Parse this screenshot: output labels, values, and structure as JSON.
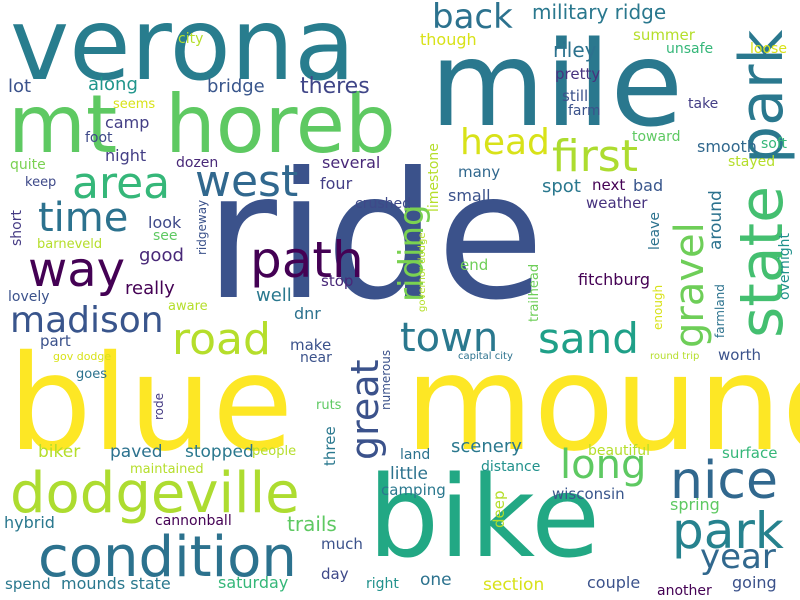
{
  "words": [
    {
      "text": "ride",
      "color": "#3b528b"
    },
    {
      "text": "blue",
      "color": "#fde725"
    },
    {
      "text": "mound",
      "color": "#fde725"
    },
    {
      "text": "verona",
      "color": "#287d8e"
    },
    {
      "text": "mile",
      "color": "#2a788e"
    },
    {
      "text": "bike",
      "color": "#22a884"
    },
    {
      "text": "mt",
      "color": "#5ec962"
    },
    {
      "text": "horeb",
      "color": "#5ec962"
    },
    {
      "text": "dodgeville",
      "color": "#addc30"
    },
    {
      "text": "condition",
      "color": "#2c728e"
    },
    {
      "text": "state",
      "color": "#44bf70"
    },
    {
      "text": "park",
      "color": "#2a788e"
    },
    {
      "text": "park",
      "color": "#26828e"
    },
    {
      "text": "nice",
      "color": "#31688e"
    },
    {
      "text": "way",
      "color": "#440154"
    },
    {
      "text": "path",
      "color": "#440154"
    },
    {
      "text": "area",
      "color": "#35b779"
    },
    {
      "text": "first",
      "color": "#addc30"
    },
    {
      "text": "west",
      "color": "#31688e"
    },
    {
      "text": "road",
      "color": "#b5de2b"
    },
    {
      "text": "time",
      "color": "#2c728e"
    },
    {
      "text": "madison",
      "color": "#39558c"
    },
    {
      "text": "town",
      "color": "#2a788e"
    },
    {
      "text": "sand",
      "color": "#1fa088"
    },
    {
      "text": "gravel",
      "color": "#6ece58"
    },
    {
      "text": "great",
      "color": "#3b528b"
    },
    {
      "text": "long",
      "color": "#5ec962"
    },
    {
      "text": "head",
      "color": "#d8e219"
    },
    {
      "text": "riding",
      "color": "#7ad151"
    },
    {
      "text": "back",
      "color": "#2c728e"
    },
    {
      "text": "year",
      "color": "#31688e"
    },
    {
      "text": "military ridge",
      "color": "#2a788e"
    },
    {
      "text": "bridge",
      "color": "#39568c"
    },
    {
      "text": "theres",
      "color": "#404688"
    },
    {
      "text": "along",
      "color": "#1f958b"
    },
    {
      "text": "lot",
      "color": "#3b528b"
    },
    {
      "text": "camp",
      "color": "#433e85"
    },
    {
      "text": "night",
      "color": "#433e85"
    },
    {
      "text": "foot",
      "color": "#3e4989"
    },
    {
      "text": "seems",
      "color": "#d8e219"
    },
    {
      "text": "quite",
      "color": "#7ad151"
    },
    {
      "text": "keep",
      "color": "#3e4989"
    },
    {
      "text": "dozen",
      "color": "#482878"
    },
    {
      "text": "city",
      "color": "#b5de2b"
    },
    {
      "text": "though",
      "color": "#d8e219"
    },
    {
      "text": "riley",
      "color": "#2c728e"
    },
    {
      "text": "summer",
      "color": "#b5de2b"
    },
    {
      "text": "unsafe",
      "color": "#35b779"
    },
    {
      "text": "loose",
      "color": "#d8e219"
    },
    {
      "text": "pretty",
      "color": "#46327e"
    },
    {
      "text": "still",
      "color": "#3b528b"
    },
    {
      "text": "farm",
      "color": "#3b528b"
    },
    {
      "text": "take",
      "color": "#433e85"
    },
    {
      "text": "toward",
      "color": "#5ec962"
    },
    {
      "text": "smooth",
      "color": "#31688e"
    },
    {
      "text": "soft",
      "color": "#35b779"
    },
    {
      "text": "stayed",
      "color": "#b5de2b"
    },
    {
      "text": "several",
      "color": "#482878"
    },
    {
      "text": "four",
      "color": "#433e85"
    },
    {
      "text": "crushed",
      "color": "#3e4989"
    },
    {
      "text": "limestone",
      "color": "#b5de2b"
    },
    {
      "text": "many",
      "color": "#31688e"
    },
    {
      "text": "small",
      "color": "#3b528b"
    },
    {
      "text": "spot",
      "color": "#2a788e"
    },
    {
      "text": "next",
      "color": "#440154"
    },
    {
      "text": "bad",
      "color": "#39568c"
    },
    {
      "text": "weather",
      "color": "#46327e"
    },
    {
      "text": "around",
      "color": "#2c728e"
    },
    {
      "text": "leave",
      "color": "#2c728e"
    },
    {
      "text": "overnight",
      "color": "#21918c"
    },
    {
      "text": "short",
      "color": "#443a83"
    },
    {
      "text": "barneveld",
      "color": "#b5de2b"
    },
    {
      "text": "look",
      "color": "#3e4989"
    },
    {
      "text": "see",
      "color": "#5ec962"
    },
    {
      "text": "ridgeway",
      "color": "#3b528b"
    },
    {
      "text": "good",
      "color": "#482878"
    },
    {
      "text": "really",
      "color": "#440154"
    },
    {
      "text": "lovely",
      "color": "#3b528b"
    },
    {
      "text": "aware",
      "color": "#b5de2b"
    },
    {
      "text": "well",
      "color": "#2a788e"
    },
    {
      "text": "stop",
      "color": "#482878"
    },
    {
      "text": "dnr",
      "color": "#2c728e"
    },
    {
      "text": "governor dodge",
      "color": "#b5de2b"
    },
    {
      "text": "trailhead",
      "color": "#6ece58"
    },
    {
      "text": "end",
      "color": "#6ece58"
    },
    {
      "text": "fitchburg",
      "color": "#440154"
    },
    {
      "text": "enough",
      "color": "#d8e219"
    },
    {
      "text": "farmland",
      "color": "#2c728e"
    },
    {
      "text": "part",
      "color": "#3b528b"
    },
    {
      "text": "gov dodge",
      "color": "#d8e219"
    },
    {
      "text": "make",
      "color": "#3b528b"
    },
    {
      "text": "near",
      "color": "#3b528b"
    },
    {
      "text": "numerous",
      "color": "#3b528b"
    },
    {
      "text": "capital city",
      "color": "#2c728e"
    },
    {
      "text": "round trip",
      "color": "#b5de2b"
    },
    {
      "text": "worth",
      "color": "#3b528b"
    },
    {
      "text": "goes",
      "color": "#2c728e"
    },
    {
      "text": "rode",
      "color": "#443a83"
    },
    {
      "text": "ruts",
      "color": "#5ec962"
    },
    {
      "text": "three",
      "color": "#2a788e"
    },
    {
      "text": "surface",
      "color": "#35b779"
    },
    {
      "text": "scenery",
      "color": "#2a788e"
    },
    {
      "text": "biker",
      "color": "#b5de2b"
    },
    {
      "text": "paved",
      "color": "#2c728e"
    },
    {
      "text": "stopped",
      "color": "#2a788e"
    },
    {
      "text": "people",
      "color": "#b5de2b"
    },
    {
      "text": "land",
      "color": "#2c728e"
    },
    {
      "text": "beautiful",
      "color": "#b5de2b"
    },
    {
      "text": "maintained",
      "color": "#b5de2b"
    },
    {
      "text": "little",
      "color": "#2c728e"
    },
    {
      "text": "distance",
      "color": "#21918c"
    },
    {
      "text": "camping",
      "color": "#2a788e"
    },
    {
      "text": "deep",
      "color": "#b5de2b"
    },
    {
      "text": "wisconsin",
      "color": "#39568c"
    },
    {
      "text": "spring",
      "color": "#5ec962"
    },
    {
      "text": "hybrid",
      "color": "#2a788e"
    },
    {
      "text": "cannonball",
      "color": "#440154"
    },
    {
      "text": "trails",
      "color": "#5ec962"
    },
    {
      "text": "much",
      "color": "#3b528b"
    },
    {
      "text": "day",
      "color": "#3e4989"
    },
    {
      "text": "spend",
      "color": "#2a788e"
    },
    {
      "text": "mounds state",
      "color": "#2a788e"
    },
    {
      "text": "saturday",
      "color": "#35b779"
    },
    {
      "text": "right",
      "color": "#21918c"
    },
    {
      "text": "one",
      "color": "#2c728e"
    },
    {
      "text": "section",
      "color": "#d8e219"
    },
    {
      "text": "couple",
      "color": "#3b528b"
    },
    {
      "text": "going",
      "color": "#3b528b"
    },
    {
      "text": "another",
      "color": "#440154"
    }
  ]
}
